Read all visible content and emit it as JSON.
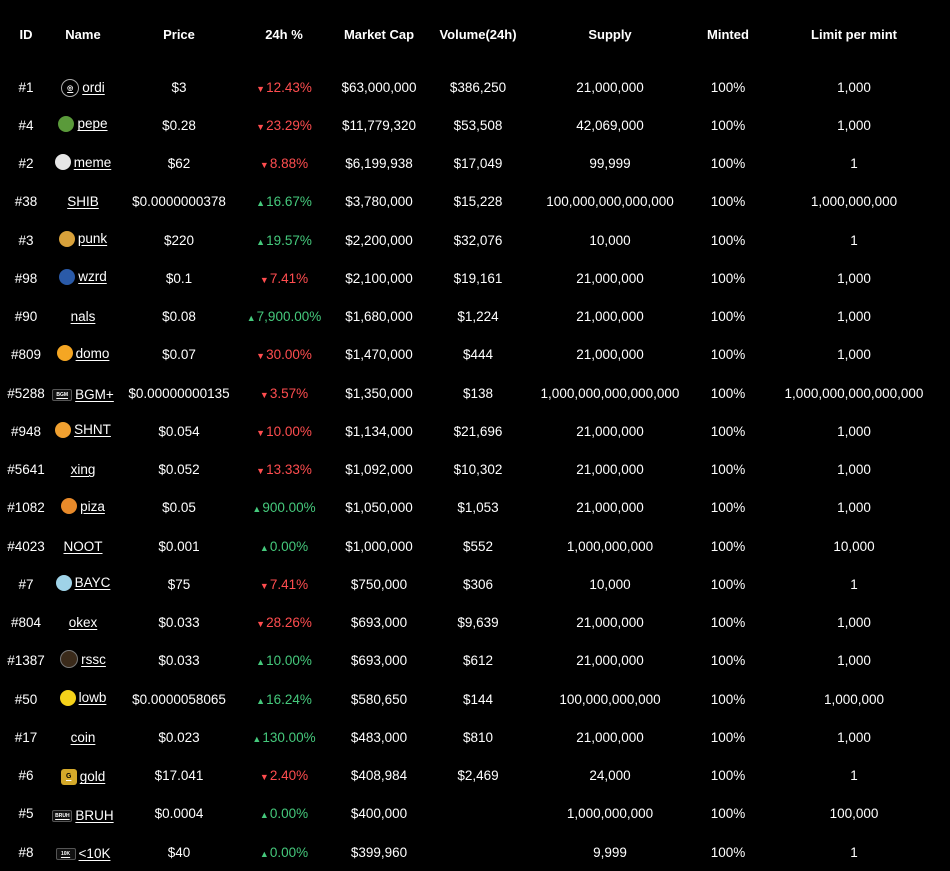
{
  "headers": {
    "id": "ID",
    "name": "Name",
    "price": "Price",
    "change": "24h %",
    "market_cap": "Market Cap",
    "volume": "Volume(24h)",
    "supply": "Supply",
    "minted": "Minted",
    "limit": "Limit per mint"
  },
  "colors": {
    "down": "#ff4d4f",
    "up": "#45c97c"
  },
  "rows": [
    {
      "id": "#1",
      "name": "ordi",
      "icon": "ordi-logo-icon",
      "price": "$3",
      "dir": "down",
      "change": "12.43%",
      "market_cap": "$63,000,000",
      "volume": "$386,250",
      "supply": "21,000,000",
      "minted": "100%",
      "limit": "1,000"
    },
    {
      "id": "#4",
      "name": "pepe",
      "icon": "pepe-logo-icon",
      "price": "$0.28",
      "dir": "down",
      "change": "23.29%",
      "market_cap": "$11,779,320",
      "volume": "$53,508",
      "supply": "42,069,000",
      "minted": "100%",
      "limit": "1,000"
    },
    {
      "id": "#2",
      "name": "meme",
      "icon": "meme-logo-icon",
      "price": "$62",
      "dir": "down",
      "change": "8.88%",
      "market_cap": "$6,199,938",
      "volume": "$17,049",
      "supply": "99,999",
      "minted": "100%",
      "limit": "1"
    },
    {
      "id": "#38",
      "name": "SHIB",
      "icon": "",
      "price": "$0.0000000378",
      "dir": "up",
      "change": "16.67%",
      "market_cap": "$3,780,000",
      "volume": "$15,228",
      "supply": "100,000,000,000,000",
      "minted": "100%",
      "limit": "1,000,000,000"
    },
    {
      "id": "#3",
      "name": "punk",
      "icon": "punk-logo-icon",
      "price": "$220",
      "dir": "up",
      "change": "19.57%",
      "market_cap": "$2,200,000",
      "volume": "$32,076",
      "supply": "10,000",
      "minted": "100%",
      "limit": "1"
    },
    {
      "id": "#98",
      "name": "wzrd",
      "icon": "wzrd-logo-icon",
      "price": "$0.1",
      "dir": "down",
      "change": "7.41%",
      "market_cap": "$2,100,000",
      "volume": "$19,161",
      "supply": "21,000,000",
      "minted": "100%",
      "limit": "1,000"
    },
    {
      "id": "#90",
      "name": "nals",
      "icon": "",
      "price": "$0.08",
      "dir": "up",
      "change": "7,900.00%",
      "market_cap": "$1,680,000",
      "volume": "$1,224",
      "supply": "21,000,000",
      "minted": "100%",
      "limit": "1,000"
    },
    {
      "id": "#809",
      "name": "domo",
      "icon": "domo-logo-icon",
      "price": "$0.07",
      "dir": "down",
      "change": "30.00%",
      "market_cap": "$1,470,000",
      "volume": "$444",
      "supply": "21,000,000",
      "minted": "100%",
      "limit": "1,000"
    },
    {
      "id": "#5288",
      "name": "BGM+",
      "icon": "bgm-logo-icon",
      "price": "$0.00000000135",
      "dir": "down",
      "change": "3.57%",
      "market_cap": "$1,350,000",
      "volume": "$138",
      "supply": "1,000,000,000,000,000",
      "minted": "100%",
      "limit": "1,000,000,000,000,000"
    },
    {
      "id": "#948",
      "name": "SHNT",
      "icon": "shnt-logo-icon",
      "price": "$0.054",
      "dir": "down",
      "change": "10.00%",
      "market_cap": "$1,134,000",
      "volume": "$21,696",
      "supply": "21,000,000",
      "minted": "100%",
      "limit": "1,000"
    },
    {
      "id": "#5641",
      "name": "xing",
      "icon": "",
      "price": "$0.052",
      "dir": "down",
      "change": "13.33%",
      "market_cap": "$1,092,000",
      "volume": "$10,302",
      "supply": "21,000,000",
      "minted": "100%",
      "limit": "1,000"
    },
    {
      "id": "#1082",
      "name": "piza",
      "icon": "piza-logo-icon",
      "price": "$0.05",
      "dir": "up",
      "change": "900.00%",
      "market_cap": "$1,050,000",
      "volume": "$1,053",
      "supply": "21,000,000",
      "minted": "100%",
      "limit": "1,000"
    },
    {
      "id": "#4023",
      "name": "NOOT",
      "icon": "",
      "price": "$0.001",
      "dir": "up",
      "change": "0.00%",
      "market_cap": "$1,000,000",
      "volume": "$552",
      "supply": "1,000,000,000",
      "minted": "100%",
      "limit": "10,000"
    },
    {
      "id": "#7",
      "name": "BAYC",
      "icon": "bayc-logo-icon",
      "price": "$75",
      "dir": "down",
      "change": "7.41%",
      "market_cap": "$750,000",
      "volume": "$306",
      "supply": "10,000",
      "minted": "100%",
      "limit": "1"
    },
    {
      "id": "#804",
      "name": "okex",
      "icon": "",
      "price": "$0.033",
      "dir": "down",
      "change": "28.26%",
      "market_cap": "$693,000",
      "volume": "$9,639",
      "supply": "21,000,000",
      "minted": "100%",
      "limit": "1,000"
    },
    {
      "id": "#1387",
      "name": "rssc",
      "icon": "rssc-logo-icon",
      "price": "$0.033",
      "dir": "up",
      "change": "10.00%",
      "market_cap": "$693,000",
      "volume": "$612",
      "supply": "21,000,000",
      "minted": "100%",
      "limit": "1,000"
    },
    {
      "id": "#50",
      "name": "lowb",
      "icon": "lowb-logo-icon",
      "price": "$0.0000058065",
      "dir": "up",
      "change": "16.24%",
      "market_cap": "$580,650",
      "volume": "$144",
      "supply": "100,000,000,000",
      "minted": "100%",
      "limit": "1,000,000"
    },
    {
      "id": "#17",
      "name": "coin",
      "icon": "",
      "price": "$0.023",
      "dir": "up",
      "change": "130.00%",
      "market_cap": "$483,000",
      "volume": "$810",
      "supply": "21,000,000",
      "minted": "100%",
      "limit": "1,000"
    },
    {
      "id": "#6",
      "name": "gold",
      "icon": "gold-logo-icon",
      "price": "$17.041",
      "dir": "down",
      "change": "2.40%",
      "market_cap": "$408,984",
      "volume": "$2,469",
      "supply": "24,000",
      "minted": "100%",
      "limit": "1"
    },
    {
      "id": "#5",
      "name": "BRUH",
      "icon": "bruh-logo-icon",
      "price": "$0.0004",
      "dir": "up",
      "change": "0.00%",
      "market_cap": "$400,000",
      "volume": "",
      "supply": "1,000,000,000",
      "minted": "100%",
      "limit": "100,000"
    },
    {
      "id": "#8",
      "name": "<10K",
      "icon": "10k-logo-icon",
      "price": "$40",
      "dir": "up",
      "change": "0.00%",
      "market_cap": "$399,960",
      "volume": "",
      "supply": "9,999",
      "minted": "100%",
      "limit": "1"
    }
  ]
}
